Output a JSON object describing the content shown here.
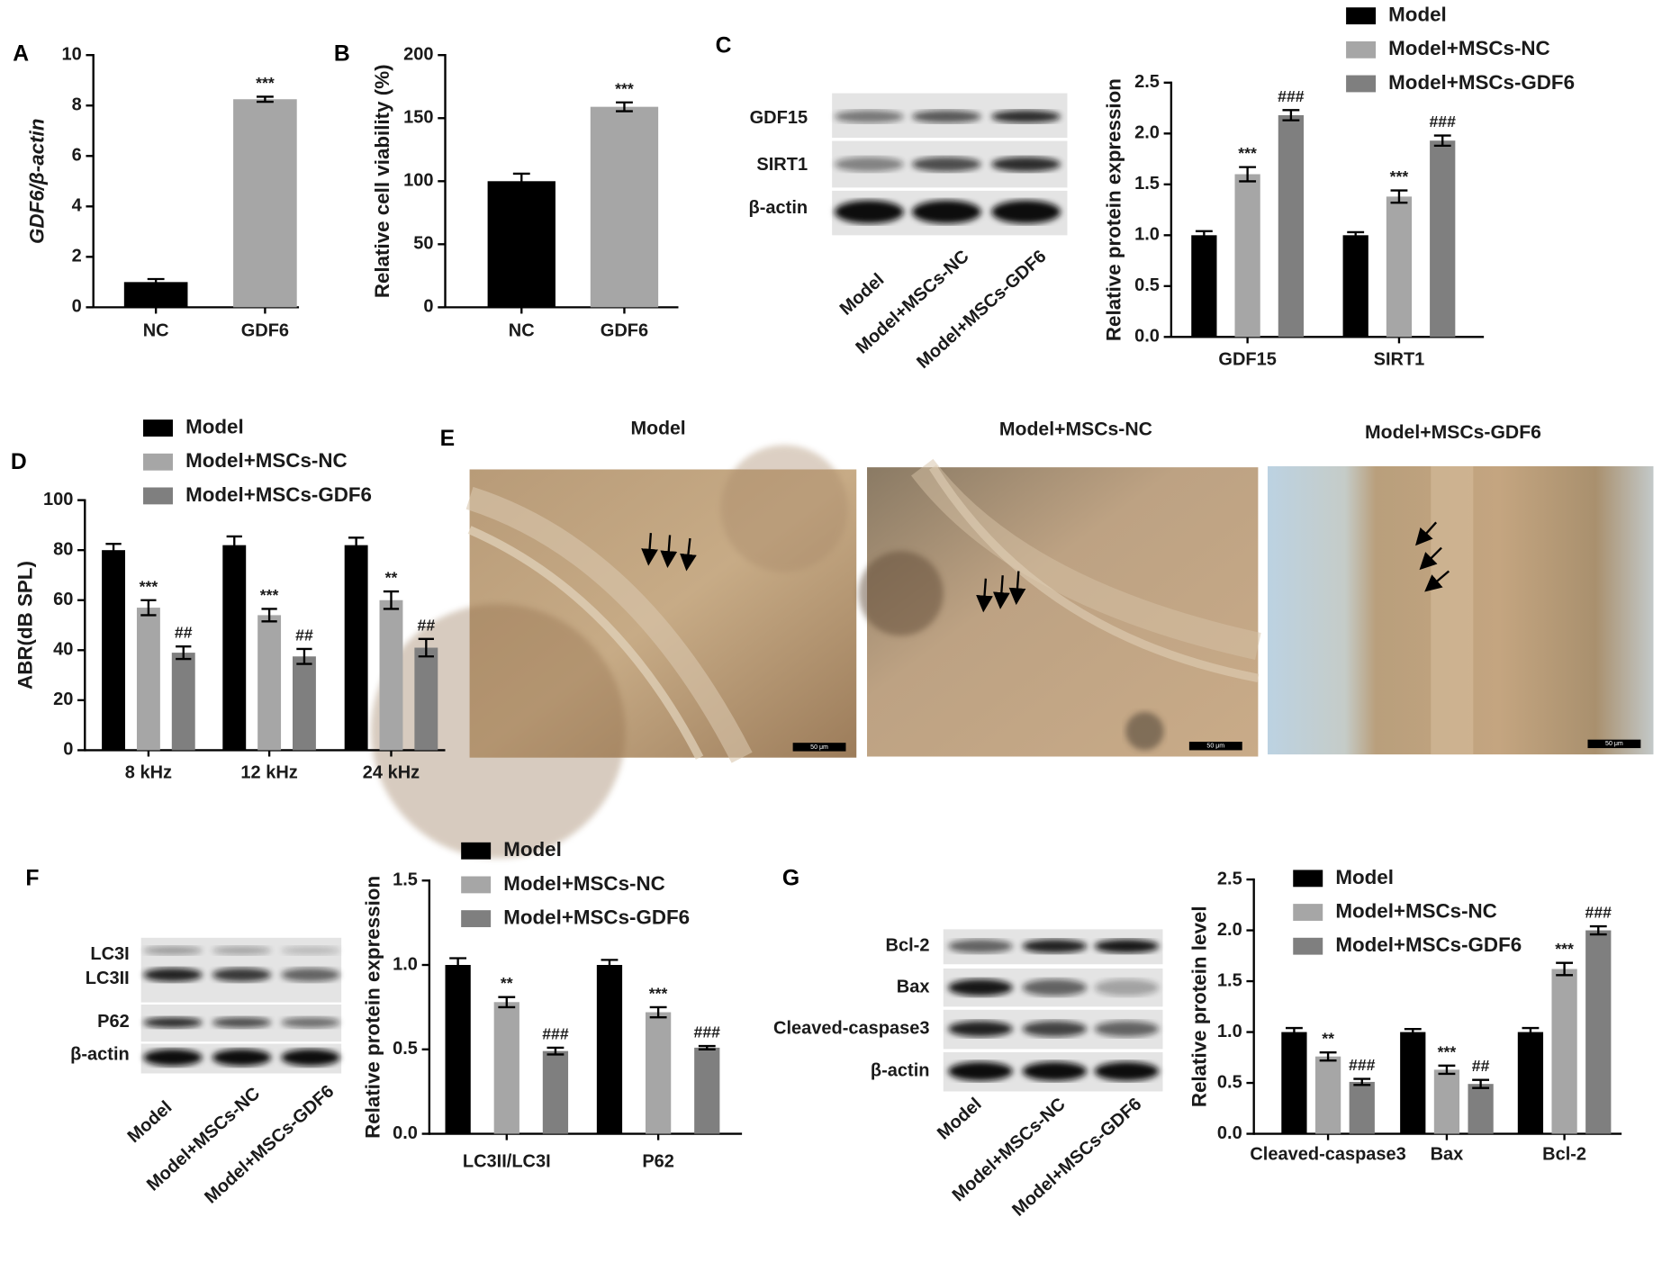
{
  "chart_data": [
    {
      "panel": "A",
      "type": "bar",
      "ylabel": "GDF6/β-actin",
      "categories": [
        "NC",
        "GDF6"
      ],
      "values": [
        1.0,
        8.25
      ],
      "errors": [
        0.12,
        0.1
      ],
      "colors": [
        "#000000",
        "#a6a6a6"
      ],
      "annotations": [
        null,
        "***"
      ],
      "ylim": [
        0,
        10
      ],
      "yticks": [
        0,
        2,
        4,
        6,
        8,
        10
      ]
    },
    {
      "panel": "B",
      "type": "bar",
      "ylabel": "Relative cell viability (%)",
      "categories": [
        "NC",
        "GDF6"
      ],
      "values": [
        100,
        159
      ],
      "errors": [
        6,
        3.5
      ],
      "colors": [
        "#000000",
        "#a6a6a6"
      ],
      "annotations": [
        null,
        "***"
      ],
      "ylim": [
        0,
        200
      ],
      "yticks": [
        0,
        50,
        100,
        150,
        200
      ]
    },
    {
      "panel": "C",
      "type": "bar",
      "ylabel": "Relative protein expression",
      "categories": [
        "GDF15",
        "SIRT1"
      ],
      "series": [
        {
          "name": "Model",
          "color": "#000000",
          "values": [
            1.0,
            1.0
          ],
          "errors": [
            0.04,
            0.03
          ],
          "annotations": [
            null,
            null
          ]
        },
        {
          "name": "Model+MSCs-NC",
          "color": "#a6a6a6",
          "values": [
            1.6,
            1.38
          ],
          "errors": [
            0.07,
            0.06
          ],
          "annotations": [
            "***",
            "***"
          ]
        },
        {
          "name": "Model+MSCs-GDF6",
          "color": "#7f7f7f",
          "values": [
            2.18,
            1.93
          ],
          "errors": [
            0.05,
            0.05
          ],
          "annotations": [
            "###",
            "###"
          ]
        }
      ],
      "ylim": [
        0,
        2.5
      ],
      "yticks": [
        {
          "value": 0,
          "label": "0.0"
        },
        0.5,
        {
          "value": 1,
          "label": "1.0"
        },
        1.5,
        {
          "value": 2,
          "label": "2.0"
        },
        2.5
      ]
    },
    {
      "panel": "D",
      "type": "bar",
      "ylabel": "ABR(dB SPL)",
      "categories": [
        "8 kHz",
        "12 kHz",
        "24 kHz"
      ],
      "series": [
        {
          "name": "Model",
          "color": "#000000",
          "values": [
            80,
            82,
            82
          ],
          "errors": [
            2.5,
            3.5,
            3
          ],
          "annotations": [
            null,
            null,
            null
          ]
        },
        {
          "name": "Model+MSCs-NC",
          "color": "#a6a6a6",
          "values": [
            57,
            54,
            60
          ],
          "errors": [
            3,
            2.5,
            3.5
          ],
          "annotations": [
            "***",
            "***",
            "**"
          ]
        },
        {
          "name": "Model+MSCs-GDF6",
          "color": "#7f7f7f",
          "values": [
            39,
            37.5,
            41
          ],
          "errors": [
            2.5,
            3,
            3.5
          ],
          "annotations": [
            "##",
            "##",
            "##"
          ]
        }
      ],
      "ylim": [
        0,
        100
      ],
      "yticks": [
        0,
        20,
        40,
        60,
        80,
        100
      ]
    },
    {
      "panel": "F",
      "type": "bar",
      "ylabel": "Relative protein expression",
      "categories": [
        "LC3II/LC3I",
        "P62"
      ],
      "series": [
        {
          "name": "Model",
          "color": "#000000",
          "values": [
            1.0,
            1.0
          ],
          "errors": [
            0.04,
            0.03
          ],
          "annotations": [
            null,
            null
          ]
        },
        {
          "name": "Model+MSCs-NC",
          "color": "#a6a6a6",
          "values": [
            0.78,
            0.72
          ],
          "errors": [
            0.03,
            0.03
          ],
          "annotations": [
            "**",
            "***"
          ]
        },
        {
          "name": "Model+MSCs-GDF6",
          "color": "#7f7f7f",
          "values": [
            0.49,
            0.51
          ],
          "errors": [
            0.02,
            0.01
          ],
          "annotations": [
            "###",
            "###"
          ]
        }
      ],
      "ylim": [
        0,
        1.5
      ],
      "yticks": [
        {
          "value": 0,
          "label": "0.0"
        },
        0.5,
        {
          "value": 1,
          "label": "1.0"
        },
        1.5
      ]
    },
    {
      "panel": "G",
      "type": "bar",
      "ylabel": "Relative protein level",
      "categories": [
        "Cleaved-caspase3",
        "Bax",
        "Bcl-2"
      ],
      "series": [
        {
          "name": "Model",
          "color": "#000000",
          "values": [
            1.0,
            1.0,
            1.0
          ],
          "errors": [
            0.04,
            0.03,
            0.04
          ],
          "annotations": [
            null,
            null,
            null
          ]
        },
        {
          "name": "Model+MSCs-NC",
          "color": "#a6a6a6",
          "values": [
            0.76,
            0.63,
            1.62
          ],
          "errors": [
            0.04,
            0.04,
            0.06
          ],
          "annotations": [
            "**",
            "***",
            "***"
          ]
        },
        {
          "name": "Model+MSCs-GDF6",
          "color": "#7f7f7f",
          "values": [
            0.51,
            0.49,
            2.0
          ],
          "errors": [
            0.03,
            0.04,
            0.04
          ],
          "annotations": [
            "###",
            "##",
            "###"
          ]
        }
      ],
      "ylim": [
        0,
        2.5
      ],
      "yticks": [
        {
          "value": 0,
          "label": "0.0"
        },
        0.5,
        {
          "value": 1,
          "label": "1.0"
        },
        1.5,
        {
          "value": 2,
          "label": "2.0"
        },
        2.5
      ]
    }
  ],
  "blots": [
    {
      "rows": [
        "GDF15",
        "SIRT1",
        "β-actin"
      ],
      "lanes": [
        "Model",
        "Model+MSCs-NC",
        "Model+MSCs-GDF6"
      ]
    },
    {
      "rows": [
        "LC3I",
        "LC3II",
        "P62",
        "β-actin"
      ],
      "lanes": [
        "Model",
        "Model+MSCs-NC",
        "Model+MSCs-GDF6"
      ]
    },
    {
      "rows": [
        "Bcl-2",
        "Bax",
        "Cleaved-caspase3",
        "β-actin"
      ],
      "lanes": [
        "Model",
        "Model+MSCs-NC",
        "Model+MSCs-GDF6"
      ]
    }
  ],
  "micrographs": {
    "panel": "E",
    "titles": [
      "Model",
      "Model+MSCs-NC",
      "Model+MSCs-GDF6"
    ],
    "scale_bar": "50 μm"
  }
}
